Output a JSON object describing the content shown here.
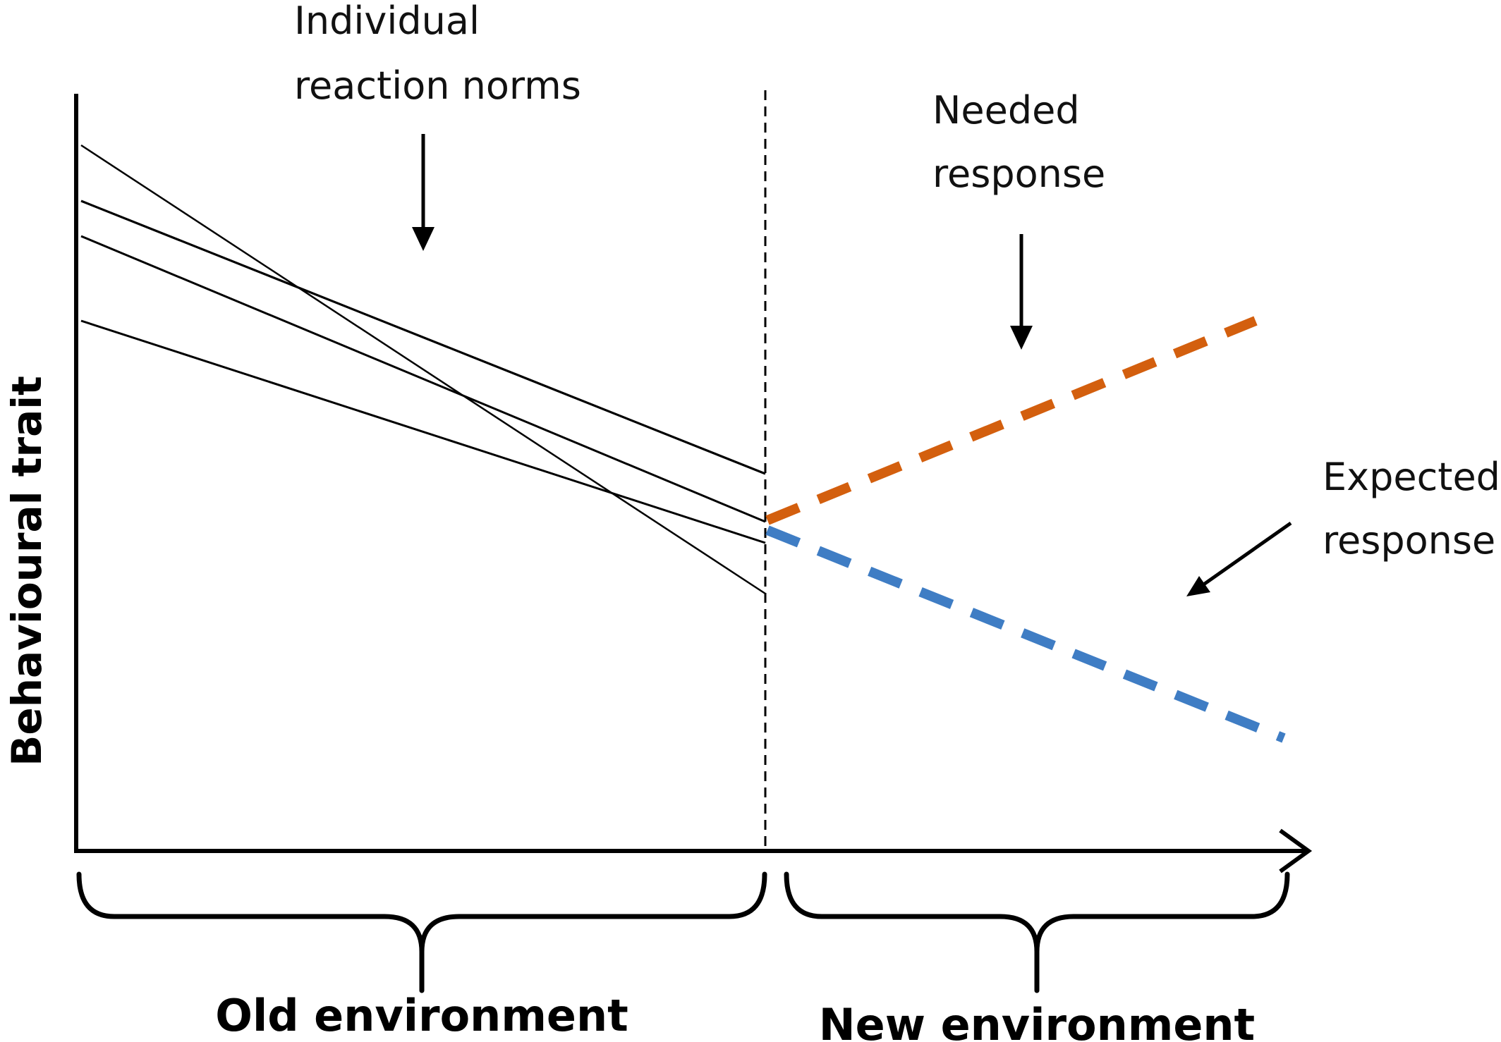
{
  "figure": {
    "y_axis_label": "Behavioural trait",
    "annotations": {
      "individual_line1": "Individual",
      "individual_line2": "reaction norms",
      "needed_line1": "Needed",
      "needed_line2": "response",
      "expected_line1": "Expected",
      "expected_line2": "response"
    },
    "sections": {
      "old": "Old environment",
      "new": "New environment"
    },
    "colors": {
      "needed": "#D35F0E",
      "expected": "#3F7DC4",
      "lines": "#000000"
    }
  }
}
